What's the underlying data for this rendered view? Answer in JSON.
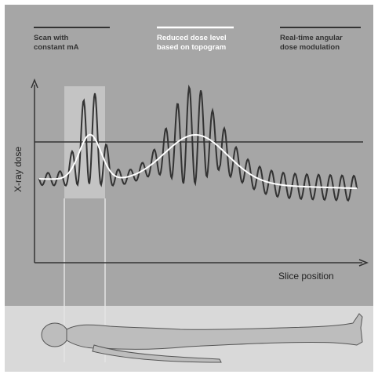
{
  "legend": [
    {
      "lines": [
        "Scan with",
        "constant mA"
      ]
    },
    {
      "lines": [
        "Reduced dose level",
        "based on topogram"
      ]
    },
    {
      "lines": [
        "Real-time angular",
        "dose modulation"
      ]
    }
  ],
  "axes": {
    "y_label": "X-ray dose",
    "x_label": "Slice position"
  }
}
